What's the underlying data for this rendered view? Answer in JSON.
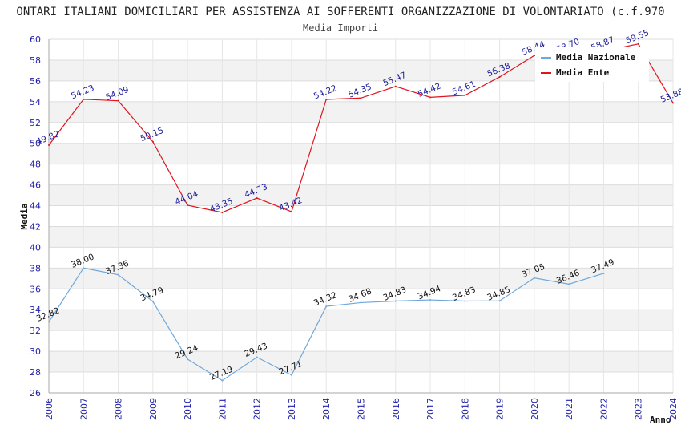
{
  "chart_data": {
    "type": "line",
    "title": "ONTARI ITALIANI DOMICILIARI PER ASSISTENZA AI SOFFERENTI ORGANIZZAZIONE DI VOLONTARIATO (c.f.970",
    "subtitle": "Media Importi",
    "xlabel": "Anno",
    "ylabel": "Media",
    "x": [
      "2006",
      "2007",
      "2008",
      "2009",
      "2010",
      "2011",
      "2012",
      "2013",
      "2014",
      "2015",
      "2016",
      "2017",
      "2018",
      "2019",
      "2020",
      "2021",
      "2022",
      "2023",
      "2024"
    ],
    "ylim": [
      26,
      60
    ],
    "yticks": [
      "26",
      "28",
      "30",
      "32",
      "34",
      "36",
      "38",
      "40",
      "42",
      "44",
      "46",
      "48",
      "50",
      "52",
      "54",
      "56",
      "58",
      "60"
    ],
    "grid": true,
    "legend_position": "top-right",
    "series": [
      {
        "name": "Media Nazionale",
        "color": "#6fa8dc",
        "label_color": "#111111",
        "values": [
          32.82,
          38.0,
          37.36,
          34.79,
          29.24,
          27.19,
          29.43,
          27.71,
          34.32,
          34.68,
          34.83,
          34.94,
          34.83,
          34.85,
          37.05,
          36.46,
          37.49,
          null,
          null
        ],
        "labels": [
          "32.82",
          "38.00",
          "37.36",
          "34.79",
          "29.24",
          "27.19",
          "29.43",
          "27.71",
          "34.32",
          "34.68",
          "34.83",
          "34.94",
          "34.83",
          "34.85",
          "37.05",
          "36.46",
          "37.49",
          "",
          ""
        ]
      },
      {
        "name": "Media Ente",
        "color": "#e0141e",
        "label_color": "#1c1c9a",
        "values": [
          49.82,
          54.23,
          54.09,
          50.15,
          44.04,
          43.35,
          44.73,
          43.42,
          54.22,
          54.35,
          55.47,
          54.42,
          54.61,
          56.38,
          58.44,
          58.7,
          58.87,
          59.55,
          53.88
        ],
        "labels": [
          "49.82",
          "54.23",
          "54.09",
          "50.15",
          "44.04",
          "43.35",
          "44.73",
          "43.42",
          "54.22",
          "54.35",
          "55.47",
          "54.42",
          "54.61",
          "56.38",
          "58.44",
          "58.70",
          "58.87",
          "59.55",
          "53.88"
        ]
      }
    ]
  }
}
